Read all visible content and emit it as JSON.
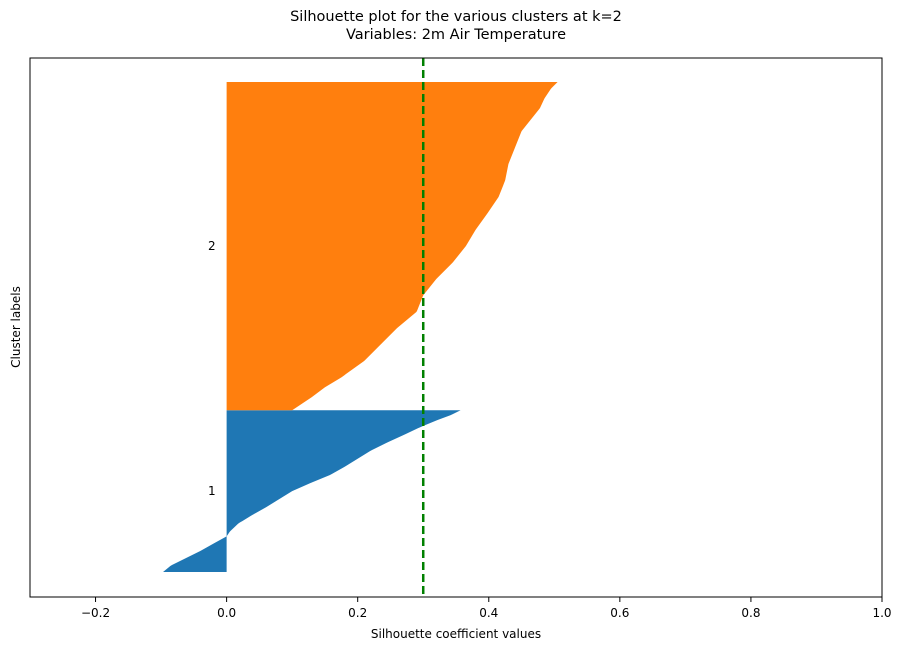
{
  "chart_data": {
    "type": "silhouette",
    "title": "Silhouette plot for the various clusters at k=2",
    "subtitle": "Variables: 2m Air Temperature",
    "xlabel": "Silhouette coefficient values",
    "ylabel": "Cluster labels",
    "xlim": [
      -0.3,
      1.0
    ],
    "xticks": [
      -0.2,
      0.0,
      0.2,
      0.4,
      0.6,
      0.8,
      1.0
    ],
    "xtick_labels": [
      "−0.2",
      "0.0",
      "0.2",
      "0.4",
      "0.6",
      "0.8",
      "1.0"
    ],
    "average_silhouette": 0.3,
    "average_line_color": "#008000",
    "grid": false,
    "clusters": [
      {
        "label": "1",
        "color": "#1f77b4",
        "size": 245,
        "profile": [
          [
            0.0,
            0.357
          ],
          [
            0.03,
            0.342
          ],
          [
            0.06,
            0.322
          ],
          [
            0.1,
            0.298
          ],
          [
            0.15,
            0.272
          ],
          [
            0.2,
            0.245
          ],
          [
            0.25,
            0.22
          ],
          [
            0.3,
            0.2
          ],
          [
            0.35,
            0.18
          ],
          [
            0.4,
            0.158
          ],
          [
            0.45,
            0.128
          ],
          [
            0.5,
            0.1
          ],
          [
            0.55,
            0.08
          ],
          [
            0.6,
            0.06
          ],
          [
            0.65,
            0.038
          ],
          [
            0.7,
            0.018
          ],
          [
            0.75,
            0.005
          ],
          [
            0.78,
            0.0
          ],
          [
            0.82,
            -0.018
          ],
          [
            0.87,
            -0.04
          ],
          [
            0.92,
            -0.065
          ],
          [
            0.96,
            -0.085
          ],
          [
            1.0,
            -0.097
          ]
        ]
      },
      {
        "label": "2",
        "color": "#ff7f0e",
        "size": 497,
        "profile": [
          [
            0.0,
            0.505
          ],
          [
            0.02,
            0.495
          ],
          [
            0.05,
            0.485
          ],
          [
            0.08,
            0.478
          ],
          [
            0.1,
            0.47
          ],
          [
            0.15,
            0.45
          ],
          [
            0.2,
            0.44
          ],
          [
            0.25,
            0.43
          ],
          [
            0.3,
            0.425
          ],
          [
            0.35,
            0.415
          ],
          [
            0.4,
            0.398
          ],
          [
            0.45,
            0.38
          ],
          [
            0.5,
            0.365
          ],
          [
            0.55,
            0.345
          ],
          [
            0.6,
            0.32
          ],
          [
            0.65,
            0.3
          ],
          [
            0.7,
            0.29
          ],
          [
            0.75,
            0.26
          ],
          [
            0.8,
            0.235
          ],
          [
            0.85,
            0.21
          ],
          [
            0.9,
            0.175
          ],
          [
            0.93,
            0.15
          ],
          [
            0.96,
            0.13
          ],
          [
            1.0,
            0.1
          ]
        ]
      }
    ]
  }
}
